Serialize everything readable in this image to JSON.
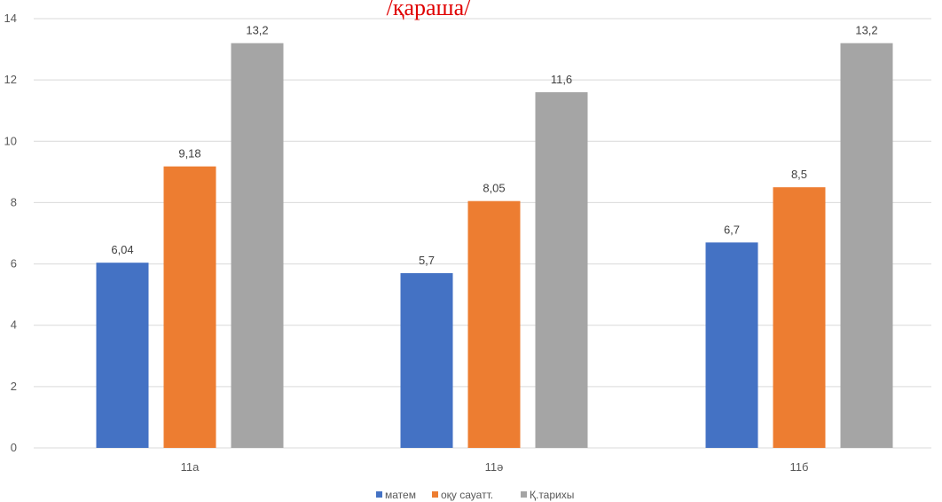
{
  "chart_data": {
    "type": "bar",
    "title": "/қараша/",
    "categories": [
      "11а",
      "11ә",
      "11б"
    ],
    "series": [
      {
        "name": "матем",
        "values": [
          6.04,
          5.7,
          6.7
        ],
        "labels": [
          "6,04",
          "5,7",
          "6,7"
        ],
        "color": "#4472c4"
      },
      {
        "name": "оқу сауатт.",
        "values": [
          9.18,
          8.05,
          8.5
        ],
        "labels": [
          "9,18",
          "8,05",
          "8,5"
        ],
        "color": "#ed7d31"
      },
      {
        "name": "Қ.тарихы",
        "values": [
          13.2,
          11.6,
          13.2
        ],
        "labels": [
          "13,2",
          "11,6",
          "13,2"
        ],
        "color": "#a5a5a5"
      }
    ],
    "ylim": [
      0,
      14
    ],
    "yticks": [
      0,
      2,
      4,
      6,
      8,
      10,
      12,
      14
    ],
    "grid": true,
    "legend_position": "bottom",
    "xlabel": "",
    "ylabel": ""
  }
}
